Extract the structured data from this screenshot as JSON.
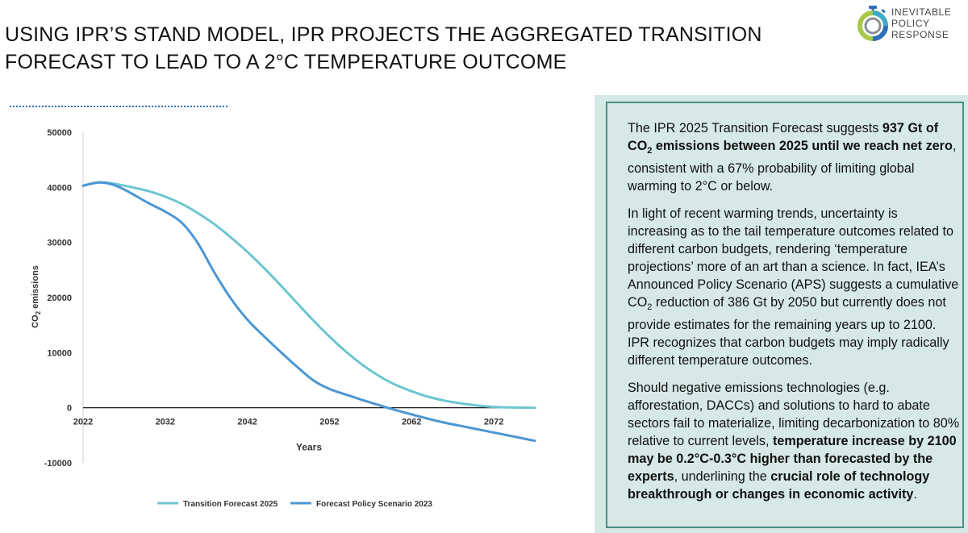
{
  "header": {
    "title": "USING IPR’S STAND MODEL, IPR PROJECTS THE AGGREGATED TRANSITION FORECAST TO LEAD TO A 2°C TEMPERATURE OUTCOME",
    "logo_lines": [
      "INEVITABLE",
      "POLICY",
      "RESPONSE"
    ]
  },
  "colors": {
    "transition": "#6cc5d1",
    "policy": "#4c97d3",
    "panel_bg": "#d6e9e6",
    "panel_border": "#4a8e86",
    "accent_dots": "#2f6fba"
  },
  "panel": {
    "p1": {
      "a": "The IPR 2025 Transition Forecast suggests ",
      "b": "937 Gt of CO",
      "b_sub": "2",
      "c": " emissions between 2025 until we reach net zero",
      "d": ", consistent with a 67% probability of limiting global warming to 2°C or below."
    },
    "p2": {
      "a": "In light of recent warming trends, uncertainty is increasing as to the tail temperature outcomes related to different carbon budgets, rendering ‘temperature projections’ more of an art than a science. In fact, IEA’s Announced Policy Scenario (APS) suggests a cumulative CO",
      "a_sub": "2",
      "b": " reduction of 386 Gt by 2050 but currently does not provide estimates for the remaining years up to 2100. IPR recognizes that carbon budgets may imply radically different temperature outcomes."
    },
    "p3": {
      "a": "Should negative emissions technologies (e.g. afforestation, DACCs) and solutions to hard to abate sectors fail to materialize, limiting decarbonization to 80% relative to current levels, ",
      "b": "temperature increase by 2100 may be 0.2°C-0.3°C higher than forecasted by the experts",
      "c": ", underlining the ",
      "d": "crucial role of technology breakthrough or changes in economic activity",
      "e": "."
    }
  },
  "chart_data": {
    "type": "line",
    "title": "",
    "xlabel": "Years",
    "ylabel_main": "CO",
    "ylabel_sub": "2",
    "ylabel_rest": " emissions",
    "xlim": [
      2022,
      2077
    ],
    "ylim": [
      -10000,
      50000
    ],
    "x_ticks": [
      2022,
      2032,
      2042,
      2052,
      2062,
      2072
    ],
    "y_ticks": [
      -10000,
      0,
      10000,
      20000,
      30000,
      40000,
      50000
    ],
    "series": [
      {
        "name": "Transition Forecast 2025",
        "color": "#6cc5d1",
        "x": [
          2022,
          2024,
          2026,
          2028,
          2030,
          2032,
          2034,
          2036,
          2038,
          2040,
          2042,
          2044,
          2046,
          2048,
          2050,
          2052,
          2054,
          2056,
          2058,
          2060,
          2062,
          2064,
          2066,
          2068,
          2070,
          2072,
          2074,
          2077
        ],
        "y": [
          40300,
          40900,
          40600,
          40000,
          39300,
          38300,
          37000,
          35300,
          33300,
          30900,
          28300,
          25400,
          22300,
          19100,
          15900,
          12900,
          10200,
          7800,
          5800,
          4200,
          3000,
          2000,
          1300,
          800,
          400,
          150,
          50,
          0
        ]
      },
      {
        "name": "Forecast Policy Scenario 2023",
        "color": "#4c97d3",
        "x": [
          2022,
          2024,
          2026,
          2028,
          2030,
          2032,
          2034,
          2036,
          2038,
          2040,
          2042,
          2044,
          2046,
          2048,
          2050,
          2052,
          2054,
          2056,
          2058,
          2060,
          2062,
          2064,
          2066,
          2068,
          2070,
          2072,
          2074,
          2077
        ],
        "y": [
          40300,
          40900,
          40300,
          38800,
          37100,
          35600,
          33600,
          29800,
          24500,
          19800,
          16000,
          13000,
          10200,
          7500,
          5000,
          3400,
          2400,
          1400,
          500,
          -400,
          -1200,
          -2000,
          -2700,
          -3300,
          -3900,
          -4500,
          -5100,
          -6000
        ]
      }
    ],
    "legend": [
      "Transition Forecast 2025",
      "Forecast Policy Scenario 2023"
    ],
    "legend_position": "bottom"
  }
}
